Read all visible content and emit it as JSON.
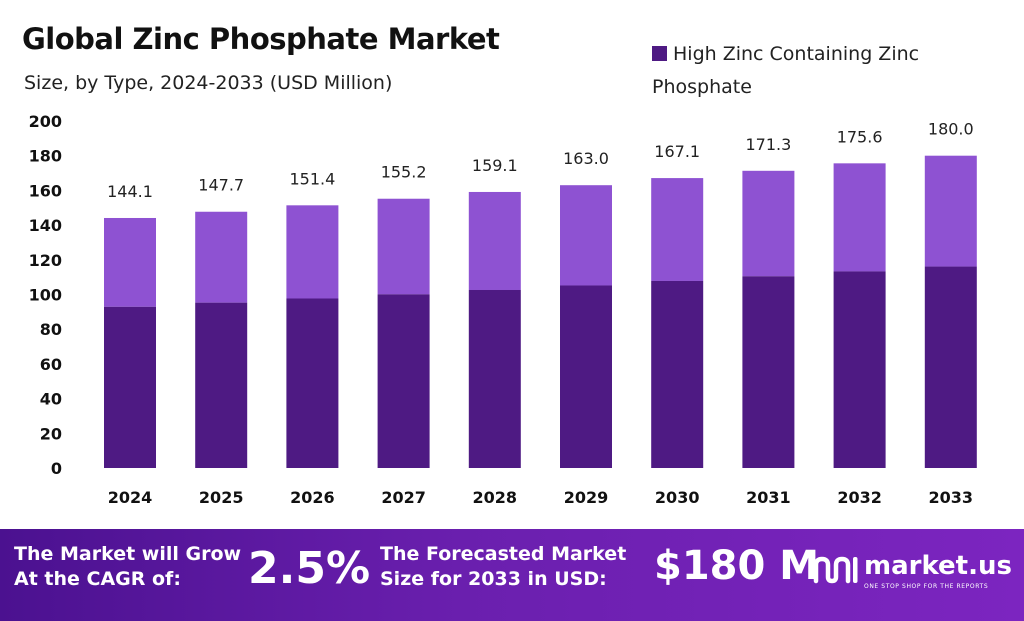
{
  "colors": {
    "bar_dark": "#4e1a83",
    "bar_light": "#8e52d2",
    "footer_start": "#4b1190",
    "footer_end": "#7c25c0"
  },
  "chart_data": {
    "type": "bar",
    "title": "Global Zinc Phosphate Market",
    "subtitle": "Size, by Type, 2024-2033 (USD Million)",
    "categories": [
      "2024",
      "2025",
      "2026",
      "2027",
      "2028",
      "2029",
      "2030",
      "2031",
      "2032",
      "2033"
    ],
    "series": [
      {
        "name": "High Zinc Containing Zinc Phosphate",
        "values": [
          92.9,
          95.3,
          97.7,
          100.1,
          102.6,
          105.2,
          107.8,
          110.5,
          113.3,
          116.1
        ]
      }
    ],
    "totals": [
      144.1,
      147.7,
      151.4,
      155.2,
      159.1,
      163.0,
      167.1,
      171.3,
      175.6,
      180.0
    ],
    "total_labels": [
      "144.1",
      "147.7",
      "151.4",
      "155.2",
      "159.1",
      "163.0",
      "167.1",
      "171.3",
      "175.6",
      "180.0"
    ],
    "yticks": [
      "0",
      "20",
      "40",
      "60",
      "80",
      "100",
      "120",
      "140",
      "160",
      "180",
      "200"
    ],
    "ylim": [
      0,
      200
    ],
    "stacked": true,
    "legend_position": "top-right",
    "grid": false
  },
  "footer": {
    "cagr_label_line1": "The Market will Grow",
    "cagr_label_line2": "At the CAGR of:",
    "cagr_value": "2.5%",
    "size_label_line1": "The Forecasted Market",
    "size_label_line2": "Size for 2033 in USD:",
    "size_value": "$180 M"
  },
  "brand": {
    "name": "market.us",
    "tagline": "ONE STOP SHOP FOR THE REPORTS",
    "icon": "market-us-logo-icon"
  }
}
